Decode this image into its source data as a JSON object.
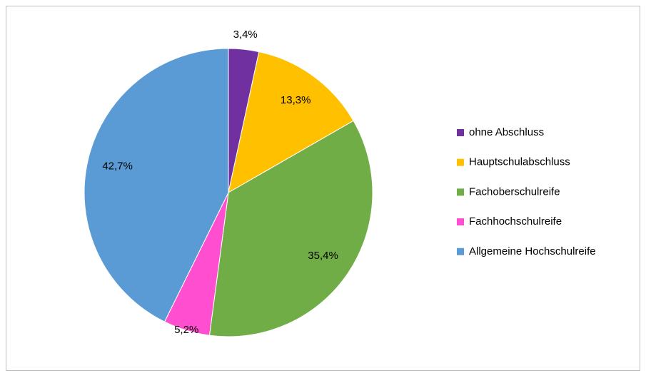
{
  "chart_data": {
    "type": "pie",
    "categories": [
      "ohne Abschluss",
      "Hauptschulabschluss",
      "Fachoberschulreife",
      "Fachhochschulreife",
      "Allgemeine Hochschulreife"
    ],
    "values": [
      3.4,
      13.3,
      35.4,
      5.2,
      42.7
    ],
    "value_labels": [
      "3,4%",
      "13,3%",
      "35,4%",
      "5,2%",
      "42,7%"
    ],
    "colors": [
      "#7030a0",
      "#ffc000",
      "#70ad47",
      "#ff4fd0",
      "#5b9bd5"
    ],
    "legend": "right"
  }
}
